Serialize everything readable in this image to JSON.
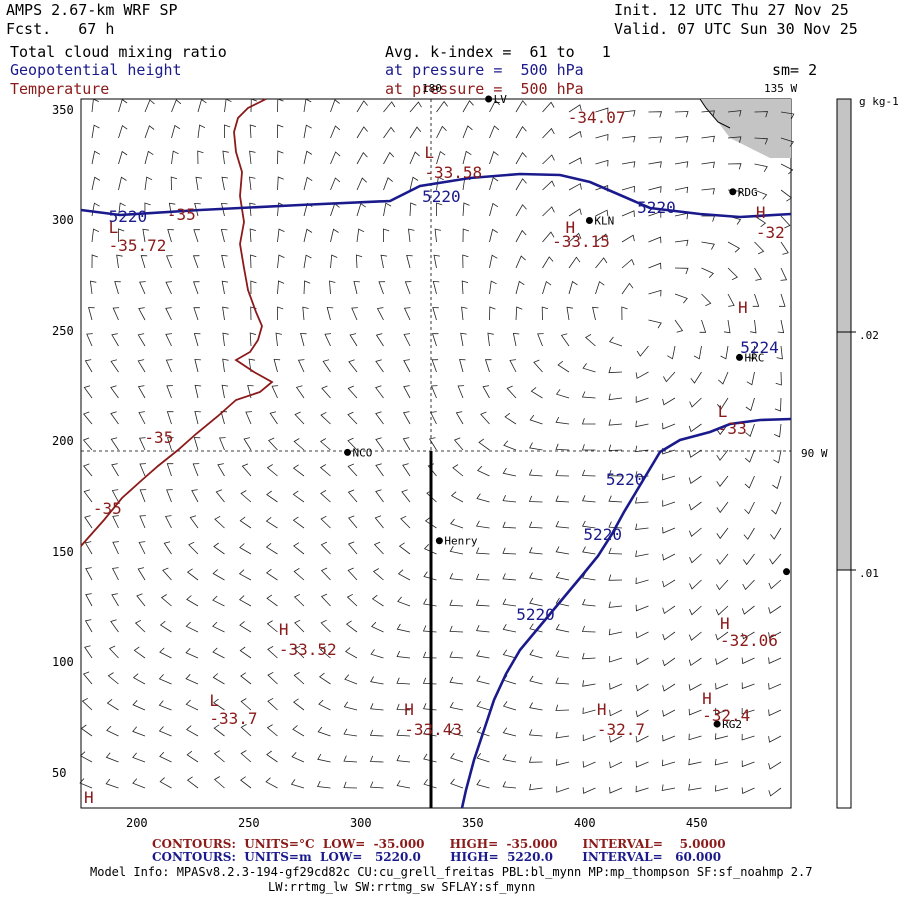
{
  "header": {
    "model": "AMPS 2.67-km WRF SP",
    "forecast": "Fcst.   67 h",
    "init": "Init. 12 UTC Thu 27 Nov 25",
    "valid": "Valid. 07 UTC Sun 30 Nov 25",
    "field1": "Total cloud mixing ratio",
    "field2": "Geopotential height",
    "field3": "Temperature",
    "avg": "Avg. k-index =  61 to   1",
    "pressure1": "at pressure =  500 hPa",
    "pressure2": "at pressure =  500 hPa",
    "smoothing": "sm= 2"
  },
  "colors": {
    "height": "#1a1a8c",
    "temperature": "#8b1a1a",
    "cloud": "#c8c8c8"
  },
  "map": {
    "meridian_labels": [
      "180",
      "135 W",
      "90 W"
    ],
    "x_ticks": [
      "200",
      "250",
      "300",
      "350",
      "400",
      "450"
    ],
    "y_ticks": [
      "350",
      "300",
      "250",
      "200",
      "150",
      "100",
      "50"
    ],
    "stations": [
      {
        "name": "LV",
        "x": 357,
        "y": 355
      },
      {
        "name": "RDG",
        "x": 466,
        "y": 313
      },
      {
        "name": "KLN",
        "x": 402,
        "y": 300
      },
      {
        "name": "HRC",
        "x": 469,
        "y": 238
      },
      {
        "name": "NCO",
        "x": 294,
        "y": 195
      },
      {
        "name": "Henry",
        "x": 335,
        "y": 155
      },
      {
        "name": "RG2",
        "x": 459,
        "y": 72
      },
      {
        "name": "",
        "x": 490,
        "y": 141
      }
    ],
    "temp_labels": [
      {
        "text": "-35",
        "x": 216,
        "y": 302
      },
      {
        "text": "-35",
        "x": 206,
        "y": 201
      },
      {
        "text": "-35",
        "x": 183,
        "y": 169
      },
      {
        "text": "-32",
        "x": 479,
        "y": 294
      },
      {
        "text": "-33.58",
        "x": 331,
        "y": 321
      },
      {
        "text": "-34.07",
        "x": 395,
        "y": 346
      },
      {
        "text": "-33.15",
        "x": 388,
        "y": 290
      },
      {
        "text": "-35.72",
        "x": 190,
        "y": 288
      },
      {
        "text": "-33",
        "x": 462,
        "y": 205
      },
      {
        "text": "-32.06",
        "x": 463,
        "y": 109
      },
      {
        "text": "-33.52",
        "x": 266,
        "y": 105
      },
      {
        "text": "-33.7",
        "x": 235,
        "y": 74
      },
      {
        "text": "-33.43",
        "x": 322,
        "y": 69
      },
      {
        "text": "-32.7",
        "x": 408,
        "y": 69
      },
      {
        "text": "-32.4",
        "x": 455,
        "y": 75
      }
    ],
    "hl_labels": [
      {
        "text": "L",
        "x": 331,
        "y": 330
      },
      {
        "text": "H",
        "x": 394,
        "y": 296
      },
      {
        "text": "L",
        "x": 190,
        "y": 296
      },
      {
        "text": "H",
        "x": 479,
        "y": 303
      },
      {
        "text": "H",
        "x": 471,
        "y": 260
      },
      {
        "text": "L",
        "x": 462,
        "y": 213
      },
      {
        "text": "H",
        "x": 463,
        "y": 117
      },
      {
        "text": "H",
        "x": 266,
        "y": 114
      },
      {
        "text": "L",
        "x": 235,
        "y": 82
      },
      {
        "text": "H",
        "x": 322,
        "y": 78
      },
      {
        "text": "H",
        "x": 408,
        "y": 78
      },
      {
        "text": "H",
        "x": 455,
        "y": 83
      },
      {
        "text": "H",
        "x": 179,
        "y": 38
      }
    ],
    "height_labels": [
      {
        "text": "5220",
        "x": 190,
        "y": 301
      },
      {
        "text": "5220",
        "x": 330,
        "y": 310
      },
      {
        "text": "5220",
        "x": 426,
        "y": 305
      },
      {
        "text": "5224",
        "x": 472,
        "y": 242
      },
      {
        "text": "5220",
        "x": 412,
        "y": 182
      },
      {
        "text": "5220",
        "x": 402,
        "y": 157
      },
      {
        "text": "5220",
        "x": 372,
        "y": 121
      }
    ]
  },
  "colorbar": {
    "unit": "g kg-1",
    "ticks": [
      ".02",
      ".01"
    ]
  },
  "footer": {
    "temp_contours": "CONTOURS:  UNITS=°C  LOW=  -35.000      HIGH=  -35.000      INTERVAL=    5.0000",
    "height_contours": "CONTOURS:  UNITS=m  LOW=   5220.0       HIGH=  5220.0       INTERVAL=   60.000",
    "model_info": "Model Info: MPASv8.2.3-194-gf29cd82c CU:cu_grell_freitas PBL:bl_mynn MP:mp_thompson SF:sf_noahmp 2.7",
    "model_info2": "LW:rrtmg_lw SW:rrtmg_sw SFLAY:sf_mynn"
  }
}
